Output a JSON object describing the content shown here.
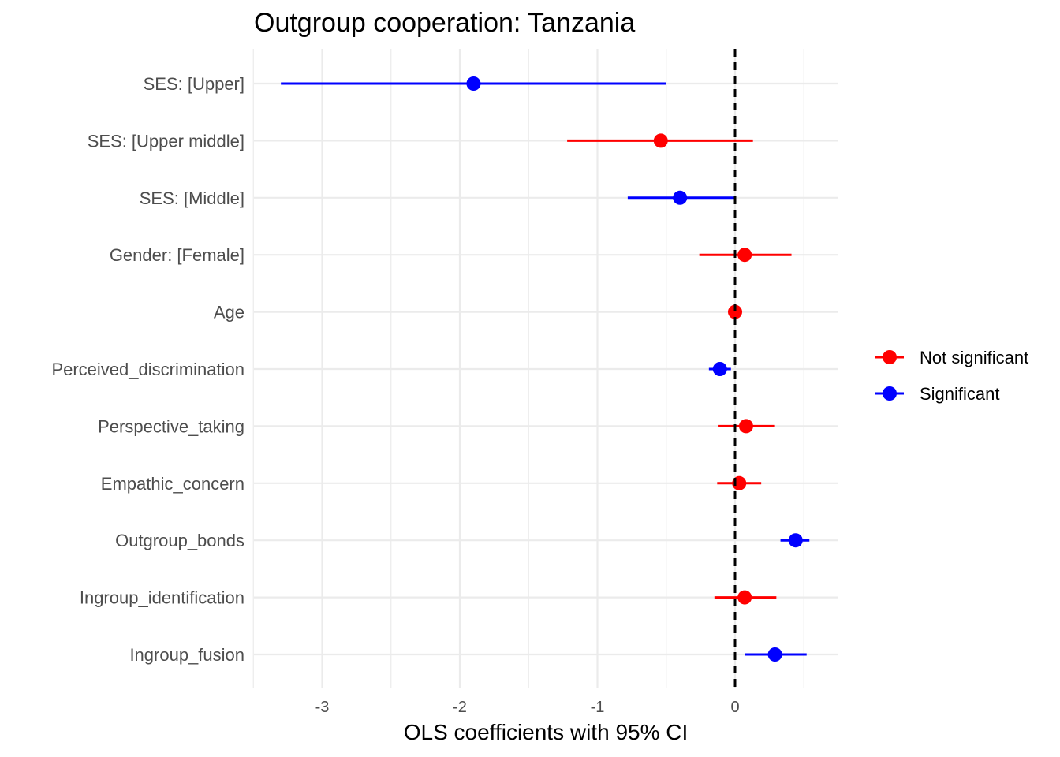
{
  "chart_data": {
    "type": "forest",
    "title": "Outgroup cooperation: Tanzania",
    "xlabel": "OLS coefficients with 95% CI",
    "ylabel": "",
    "xlim": [
      -3.5,
      0.73
    ],
    "x_ticks": [
      -3,
      -2,
      -1,
      0
    ],
    "x_tick_labels": [
      "-3",
      "-2",
      "-1",
      "0"
    ],
    "reference_line": 0,
    "grid": true,
    "legend": {
      "position": "right",
      "entries": [
        {
          "label": "Not significant",
          "color": "#ff0000"
        },
        {
          "label": "Significant",
          "color": "#0000ff"
        }
      ]
    },
    "categories": [
      "SES:  [Upper]",
      "SES:  [Upper middle]",
      "SES:  [Middle]",
      "Gender:  [Female]",
      "Age",
      "Perceived_discrimination",
      "Perspective_taking",
      "Empathic_concern",
      "Outgroup_bonds",
      "Ingroup_identification",
      "Ingroup_fusion"
    ],
    "estimates": [
      -1.9,
      -0.54,
      -0.4,
      0.07,
      0.0,
      -0.11,
      0.08,
      0.03,
      0.44,
      0.07,
      0.29
    ],
    "ci_low": [
      -3.3,
      -1.22,
      -0.78,
      -0.26,
      -0.01,
      -0.19,
      -0.12,
      -0.13,
      0.33,
      -0.15,
      0.07
    ],
    "ci_high": [
      -0.5,
      0.13,
      0.0,
      0.41,
      0.01,
      -0.03,
      0.29,
      0.19,
      0.54,
      0.3,
      0.52
    ],
    "significant": [
      true,
      false,
      true,
      false,
      false,
      true,
      false,
      false,
      true,
      false,
      true
    ]
  }
}
